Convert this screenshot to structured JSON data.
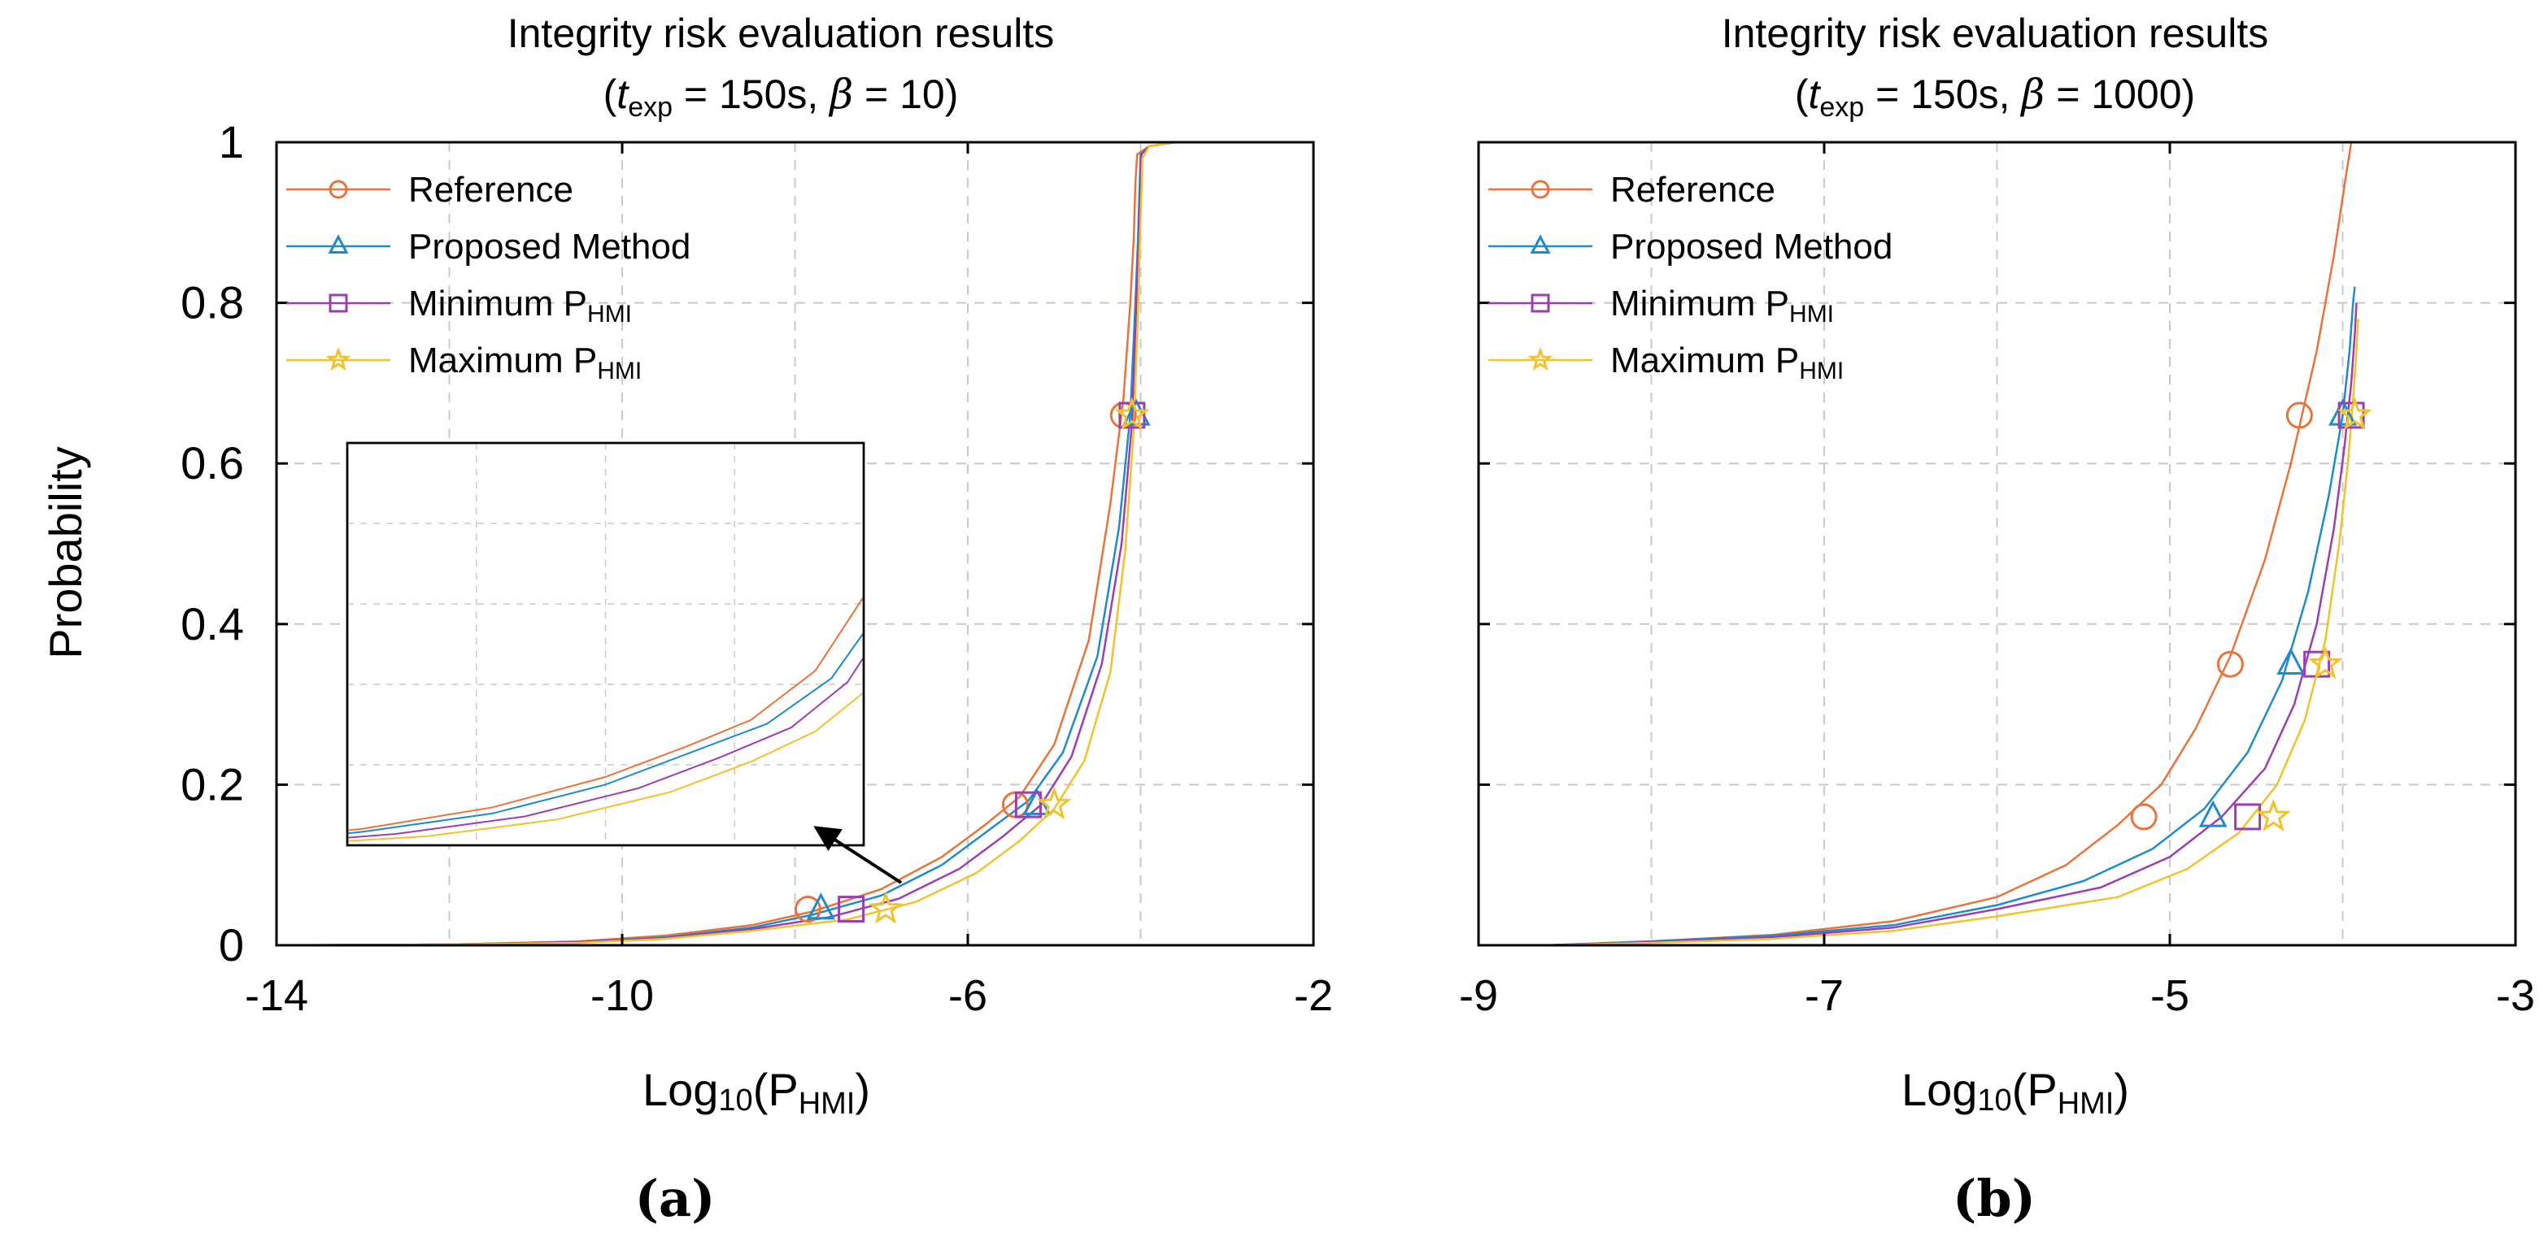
{
  "colors": {
    "reference": "#E8743B",
    "proposed": "#1F8BC9",
    "minimum": "#9B3FB0",
    "maximum": "#F2C12E",
    "grid": "#c8c8c8",
    "inset_arrow": "#000000"
  },
  "chart_data": [
    {
      "type": "line",
      "panel_label": "(a)",
      "title_line1": "Integrity risk evaluation results",
      "title_line2": {
        "open": "(",
        "t": "t",
        "sub": "exp",
        "rest": " = 150s,  ",
        "beta": "β",
        "beta_rest": " = 10)"
      },
      "xlabel": {
        "base": "Log",
        "sub10": "10",
        "open": "(P",
        "sub": "HMI",
        "close": ")"
      },
      "ylabel": "Probability",
      "xlim": [
        -14,
        -2
      ],
      "ylim": [
        0,
        1
      ],
      "xticks": [
        -14,
        -10,
        -6,
        -2
      ],
      "xtick_labels": [
        "-14",
        "-10",
        "-6",
        "-2"
      ],
      "xgrid": [
        -12,
        -10,
        -8,
        -6,
        -4
      ],
      "yticks": [
        0,
        0.2,
        0.4,
        0.6,
        0.8,
        1
      ],
      "ytick_labels": [
        "0",
        "0.2",
        "0.4",
        "0.6",
        "0.8",
        "1"
      ],
      "grid": true,
      "legend_position": "top-left",
      "legend": [
        {
          "key": "reference",
          "label": "Reference",
          "sub": "",
          "marker": "circle"
        },
        {
          "key": "proposed",
          "label": "Proposed Method",
          "sub": "",
          "marker": "triangle"
        },
        {
          "key": "minimum",
          "label": "Minimum P",
          "sub": "HMI",
          "marker": "square"
        },
        {
          "key": "maximum",
          "label": "Maximum P",
          "sub": "HMI",
          "marker": "star"
        }
      ],
      "series": [
        {
          "key": "reference",
          "x": [
            -14,
            -12,
            -10.5,
            -9.5,
            -8.5,
            -7.8,
            -7,
            -6.3,
            -5.8,
            -5.4,
            -5,
            -4.6,
            -4.35,
            -4.2,
            -4.12,
            -4.08,
            -4.06,
            -4.04,
            -3.9,
            -3.6
          ],
          "y": [
            0,
            0.001,
            0.005,
            0.012,
            0.025,
            0.042,
            0.07,
            0.11,
            0.15,
            0.185,
            0.25,
            0.38,
            0.55,
            0.68,
            0.8,
            0.88,
            0.95,
            0.985,
            0.995,
            1
          ],
          "markers": [
            {
              "x": -7.85,
              "y": 0.045
            },
            {
              "x": -5.45,
              "y": 0.175
            },
            {
              "x": -4.2,
              "y": 0.66
            }
          ]
        },
        {
          "key": "proposed",
          "x": [
            -14,
            -12,
            -10.5,
            -9.5,
            -8.5,
            -7.8,
            -7,
            -6.3,
            -5.8,
            -5.3,
            -4.9,
            -4.5,
            -4.25,
            -4.12,
            -4.06,
            -4.03,
            -4.01,
            -4.0,
            -3.9,
            -3.6
          ],
          "y": [
            0,
            0.001,
            0.004,
            0.01,
            0.022,
            0.038,
            0.062,
            0.1,
            0.14,
            0.18,
            0.24,
            0.36,
            0.52,
            0.66,
            0.8,
            0.88,
            0.95,
            0.985,
            0.995,
            1
          ],
          "markers": [
            {
              "x": -7.7,
              "y": 0.045
            },
            {
              "x": -5.2,
              "y": 0.175
            },
            {
              "x": -4.05,
              "y": 0.66
            }
          ]
        },
        {
          "key": "minimum",
          "x": [
            -14,
            -12,
            -10.5,
            -9.5,
            -8.5,
            -7.6,
            -6.8,
            -6.1,
            -5.6,
            -5.15,
            -4.8,
            -4.45,
            -4.22,
            -4.1,
            -4.05,
            -4.02,
            -4.0,
            -3.99,
            -3.9,
            -3.6
          ],
          "y": [
            0,
            0.001,
            0.004,
            0.009,
            0.02,
            0.035,
            0.058,
            0.095,
            0.135,
            0.175,
            0.235,
            0.35,
            0.5,
            0.65,
            0.8,
            0.88,
            0.95,
            0.985,
            0.995,
            1
          ],
          "markers": [
            {
              "x": -7.35,
              "y": 0.045
            },
            {
              "x": -5.3,
              "y": 0.175
            },
            {
              "x": -4.1,
              "y": 0.66
            }
          ]
        },
        {
          "key": "maximum",
          "x": [
            -14,
            -12,
            -10.5,
            -9.5,
            -8.5,
            -7.4,
            -6.6,
            -5.9,
            -5.4,
            -5.0,
            -4.65,
            -4.35,
            -4.18,
            -4.08,
            -4.03,
            -4.01,
            -3.99,
            -3.98,
            -3.9,
            -3.6
          ],
          "y": [
            0,
            0.001,
            0.003,
            0.008,
            0.018,
            0.032,
            0.054,
            0.09,
            0.13,
            0.17,
            0.23,
            0.34,
            0.49,
            0.64,
            0.79,
            0.87,
            0.94,
            0.98,
            0.995,
            1
          ],
          "markers": [
            {
              "x": -6.95,
              "y": 0.045
            },
            {
              "x": -5.0,
              "y": 0.175
            },
            {
              "x": -4.1,
              "y": 0.66
            }
          ]
        }
      ],
      "inset": {
        "note": "zoomed view of lower tail",
        "series_y_scale": true
      }
    },
    {
      "type": "line",
      "panel_label": "(b)",
      "title_line1": "Integrity risk evaluation results",
      "title_line2": {
        "open": "(",
        "t": "t",
        "sub": "exp",
        "rest": " = 150s,  ",
        "beta": "β",
        "beta_rest": " = 1000)"
      },
      "xlabel": {
        "base": "Log",
        "sub10": "10",
        "open": "(P",
        "sub": "HMI",
        "close": ")"
      },
      "ylabel": "",
      "xlim": [
        -9,
        -3
      ],
      "ylim": [
        0,
        1
      ],
      "xticks": [
        -9,
        -7,
        -5,
        -3
      ],
      "xtick_labels": [
        "-9",
        "-7",
        "-5",
        "-3"
      ],
      "xgrid": [
        -8,
        -7,
        -6,
        -5,
        -4
      ],
      "yticks": [
        0,
        0.2,
        0.4,
        0.6,
        0.8,
        1
      ],
      "ytick_labels": [
        "",
        "",
        "",
        "",
        "",
        ""
      ],
      "grid": true,
      "legend_position": "top-left",
      "legend": [
        {
          "key": "reference",
          "label": "Reference",
          "sub": "",
          "marker": "circle"
        },
        {
          "key": "proposed",
          "label": "Proposed Method",
          "sub": "",
          "marker": "triangle"
        },
        {
          "key": "minimum",
          "label": "Minimum P",
          "sub": "HMI",
          "marker": "square"
        },
        {
          "key": "maximum",
          "label": "Maximum P",
          "sub": "HMI",
          "marker": "star"
        }
      ],
      "series": [
        {
          "key": "reference",
          "x": [
            -8.6,
            -8,
            -7.3,
            -6.6,
            -6,
            -5.6,
            -5.3,
            -5.05,
            -4.85,
            -4.65,
            -4.45,
            -4.3,
            -4.15,
            -4.05,
            -3.98,
            -3.95
          ],
          "y": [
            0,
            0.005,
            0.013,
            0.03,
            0.06,
            0.1,
            0.15,
            0.2,
            0.27,
            0.36,
            0.48,
            0.6,
            0.74,
            0.86,
            0.96,
            1
          ],
          "markers": [
            {
              "x": -5.15,
              "y": 0.16
            },
            {
              "x": -4.65,
              "y": 0.35
            },
            {
              "x": -4.25,
              "y": 0.66
            }
          ]
        },
        {
          "key": "proposed",
          "x": [
            -8.6,
            -8,
            -7.3,
            -6.6,
            -6,
            -5.5,
            -5.1,
            -4.8,
            -4.55,
            -4.35,
            -4.2,
            -4.08,
            -4.0,
            -3.96,
            -3.94,
            -3.93
          ],
          "y": [
            0,
            0.005,
            0.012,
            0.025,
            0.05,
            0.08,
            0.12,
            0.17,
            0.24,
            0.33,
            0.44,
            0.56,
            0.66,
            0.74,
            0.8,
            0.82
          ],
          "markers": [
            {
              "x": -4.75,
              "y": 0.16
            },
            {
              "x": -4.3,
              "y": 0.35
            },
            {
              "x": -4.0,
              "y": 0.66
            }
          ]
        },
        {
          "key": "minimum",
          "x": [
            -8.6,
            -8,
            -7.3,
            -6.6,
            -6,
            -5.4,
            -5.0,
            -4.7,
            -4.45,
            -4.28,
            -4.15,
            -4.05,
            -3.99,
            -3.95,
            -3.93,
            -3.92
          ],
          "y": [
            0,
            0.004,
            0.01,
            0.022,
            0.045,
            0.072,
            0.11,
            0.16,
            0.22,
            0.3,
            0.4,
            0.52,
            0.62,
            0.7,
            0.76,
            0.8
          ],
          "markers": [
            {
              "x": -4.55,
              "y": 0.16
            },
            {
              "x": -4.15,
              "y": 0.35
            },
            {
              "x": -3.95,
              "y": 0.66
            }
          ]
        },
        {
          "key": "maximum",
          "x": [
            -8.6,
            -8,
            -7.3,
            -6.6,
            -6,
            -5.3,
            -4.9,
            -4.6,
            -4.38,
            -4.22,
            -4.1,
            -4.02,
            -3.97,
            -3.94,
            -3.92,
            -3.91
          ],
          "y": [
            0,
            0.003,
            0.008,
            0.018,
            0.036,
            0.06,
            0.095,
            0.14,
            0.2,
            0.28,
            0.38,
            0.5,
            0.6,
            0.68,
            0.74,
            0.78
          ],
          "markers": [
            {
              "x": -4.4,
              "y": 0.16
            },
            {
              "x": -4.1,
              "y": 0.35
            },
            {
              "x": -3.93,
              "y": 0.66
            }
          ]
        }
      ]
    }
  ]
}
